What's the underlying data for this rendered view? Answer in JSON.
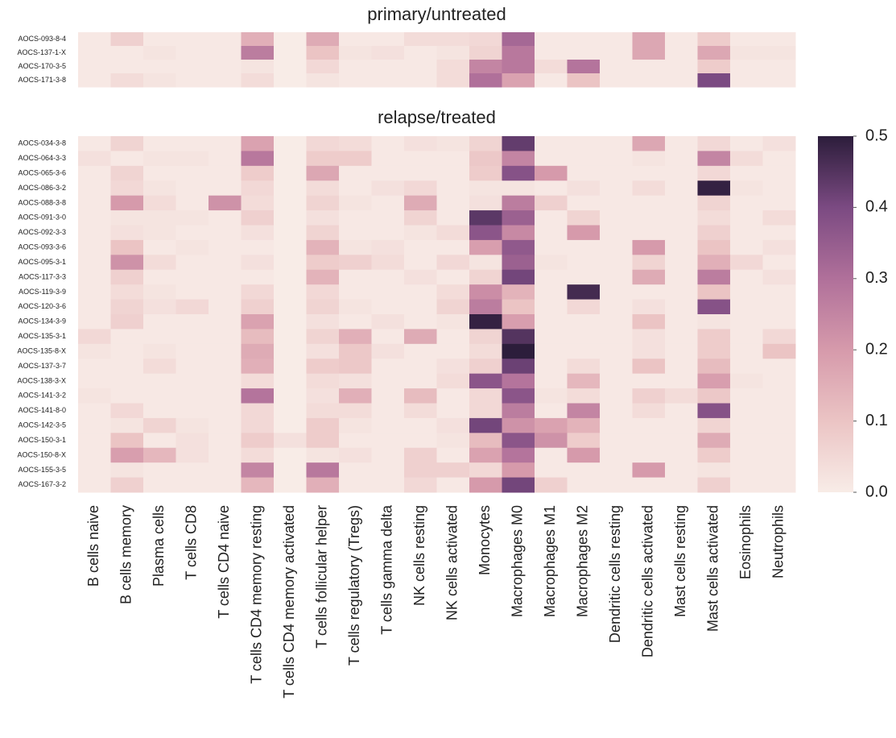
{
  "chart_data": {
    "type": "heatmap",
    "x_categories": [
      "B cells naive",
      "B cells memory",
      "Plasma cells",
      "T cells CD8",
      "T cells CD4 naive",
      "T cells CD4 memory resting",
      "T cells CD4 memory activated",
      "T cells follicular helper",
      "T cells regulatory (Tregs)",
      "T cells gamma delta",
      "NK cells resting",
      "NK cells activated",
      "Monocytes",
      "Macrophages M0",
      "Macrophages M1",
      "Macrophages M2",
      "Dendritic cells resting",
      "Dendritic cells activated",
      "Mast cells resting",
      "Mast cells activated",
      "Eosinophils",
      "Neutrophils"
    ],
    "clim": [
      0,
      0.5
    ],
    "colorbar_ticks": [
      {
        "value": 0,
        "label": "0.0"
      },
      0.1,
      0.2,
      0.3,
      0.4,
      0.5
    ],
    "colorscale": [
      "#f8ece7",
      "#ebc4c4",
      "#d69aab",
      "#b0709a",
      "#7b4a82",
      "#2c1d3b"
    ],
    "panels": [
      {
        "title": "primary/untreated",
        "rows": [
          "AOCS-093-8-4",
          "AOCS-137-1-X",
          "AOCS-170-3-5",
          "AOCS-171-3-8"
        ],
        "values": [
          [
            0.01,
            0.07,
            0.01,
            0.01,
            0.01,
            0.15,
            0.0,
            0.16,
            0.01,
            0.01,
            0.04,
            0.04,
            0.05,
            0.32,
            0.01,
            0.01,
            0.01,
            0.17,
            0.01,
            0.08,
            0.01,
            0.01
          ],
          [
            0.01,
            0.01,
            0.02,
            0.01,
            0.01,
            0.27,
            0.0,
            0.1,
            0.02,
            0.03,
            0.01,
            0.02,
            0.06,
            0.28,
            0.01,
            0.01,
            0.01,
            0.17,
            0.01,
            0.17,
            0.02,
            0.02
          ],
          [
            0.01,
            0.01,
            0.01,
            0.01,
            0.01,
            0.02,
            0.0,
            0.05,
            0.01,
            0.01,
            0.01,
            0.04,
            0.25,
            0.28,
            0.04,
            0.29,
            0.01,
            0.01,
            0.01,
            0.08,
            0.01,
            0.01
          ],
          [
            0.01,
            0.04,
            0.02,
            0.01,
            0.01,
            0.04,
            0.0,
            0.02,
            0.01,
            0.01,
            0.01,
            0.04,
            0.3,
            0.18,
            0.01,
            0.1,
            0.01,
            0.01,
            0.01,
            0.4,
            0.01,
            0.01
          ]
        ]
      },
      {
        "title": "relapse/treated",
        "rows": [
          "AOCS-034-3-8",
          "AOCS-064-3-3",
          "AOCS-065-3-6",
          "AOCS-086-3-2",
          "AOCS-088-3-8",
          "AOCS-091-3-0",
          "AOCS-092-3-3",
          "AOCS-093-3-6",
          "AOCS-095-3-1",
          "AOCS-117-3-3",
          "AOCS-119-3-9",
          "AOCS-120-3-6",
          "AOCS-134-3-9",
          "AOCS-135-3-1",
          "AOCS-135-8-X",
          "AOCS-137-3-7",
          "AOCS-138-3-X",
          "AOCS-141-3-2",
          "AOCS-141-8-0",
          "AOCS-142-3-5",
          "AOCS-150-3-1",
          "AOCS-150-8-X",
          "AOCS-155-3-5",
          "AOCS-167-3-2"
        ],
        "values": [
          [
            0.01,
            0.06,
            0.01,
            0.01,
            0.01,
            0.18,
            0,
            0.05,
            0.04,
            0.01,
            0.03,
            0.02,
            0.06,
            0.43,
            0.01,
            0.01,
            0.01,
            0.17,
            0.01,
            0.05,
            0.01,
            0.03
          ],
          [
            0.03,
            0.01,
            0.02,
            0.02,
            0.01,
            0.28,
            0,
            0.08,
            0.08,
            0.01,
            0.01,
            0.01,
            0.09,
            0.25,
            0.01,
            0.01,
            0.01,
            0.02,
            0.01,
            0.25,
            0.04,
            0.01
          ],
          [
            0.01,
            0.06,
            0.01,
            0.01,
            0.01,
            0.08,
            0,
            0.17,
            0.01,
            0.01,
            0.01,
            0.01,
            0.08,
            0.38,
            0.2,
            0.01,
            0.01,
            0.01,
            0.01,
            0.05,
            0.01,
            0.01
          ],
          [
            0.01,
            0.05,
            0.02,
            0.01,
            0.01,
            0.05,
            0,
            0.04,
            0.01,
            0.03,
            0.05,
            0.01,
            0.02,
            0.02,
            0.01,
            0.03,
            0.01,
            0.04,
            0.01,
            0.49,
            0.02,
            0.01
          ],
          [
            0.01,
            0.2,
            0.04,
            0.01,
            0.22,
            0.04,
            0,
            0.06,
            0.02,
            0.01,
            0.16,
            0.01,
            0.03,
            0.27,
            0.07,
            0.01,
            0.01,
            0.01,
            0.01,
            0.06,
            0.01,
            0.01
          ],
          [
            0.01,
            0.02,
            0.02,
            0.02,
            0.01,
            0.07,
            0,
            0.03,
            0.01,
            0.01,
            0.06,
            0.01,
            0.44,
            0.34,
            0.01,
            0.06,
            0.01,
            0.01,
            0.01,
            0.04,
            0.01,
            0.04
          ],
          [
            0.01,
            0.03,
            0.02,
            0.01,
            0.01,
            0.03,
            0,
            0.06,
            0.01,
            0.01,
            0.02,
            0.04,
            0.37,
            0.24,
            0.01,
            0.2,
            0.01,
            0.01,
            0.01,
            0.07,
            0.01,
            0.01
          ],
          [
            0.01,
            0.1,
            0.01,
            0.02,
            0.01,
            0.01,
            0,
            0.14,
            0.02,
            0.03,
            0.01,
            0.01,
            0.19,
            0.36,
            0.01,
            0.01,
            0.01,
            0.2,
            0.01,
            0.1,
            0.01,
            0.03
          ],
          [
            0.01,
            0.22,
            0.04,
            0.01,
            0.01,
            0.03,
            0,
            0.08,
            0.07,
            0.04,
            0.01,
            0.05,
            0.02,
            0.34,
            0.02,
            0.01,
            0.01,
            0.06,
            0.01,
            0.15,
            0.05,
            0.01
          ],
          [
            0.01,
            0.07,
            0.01,
            0.01,
            0.01,
            0.01,
            0,
            0.14,
            0.01,
            0.01,
            0.03,
            0.01,
            0.06,
            0.41,
            0.01,
            0.01,
            0.01,
            0.16,
            0.01,
            0.27,
            0.01,
            0.03
          ],
          [
            0.01,
            0.04,
            0.02,
            0.01,
            0.01,
            0.05,
            0,
            0.05,
            0.01,
            0.01,
            0.01,
            0.04,
            0.23,
            0.14,
            0.01,
            0.47,
            0.01,
            0.01,
            0.01,
            0.1,
            0.01,
            0.01
          ],
          [
            0.01,
            0.06,
            0.03,
            0.05,
            0.01,
            0.07,
            0,
            0.06,
            0.02,
            0.01,
            0.01,
            0.06,
            0.27,
            0.1,
            0.01,
            0.05,
            0.01,
            0.03,
            0.01,
            0.38,
            0.01,
            0.01
          ],
          [
            0.01,
            0.07,
            0.01,
            0.01,
            0.01,
            0.18,
            0,
            0.03,
            0.01,
            0.03,
            0.01,
            0.02,
            0.49,
            0.19,
            0.01,
            0.01,
            0.01,
            0.1,
            0.01,
            0.02,
            0.01,
            0.01
          ],
          [
            0.05,
            0.01,
            0.01,
            0.01,
            0.01,
            0.12,
            0,
            0.06,
            0.15,
            0.01,
            0.16,
            0.01,
            0.06,
            0.45,
            0.01,
            0.01,
            0.01,
            0.03,
            0.01,
            0.08,
            0.01,
            0.05
          ],
          [
            0.02,
            0.01,
            0.02,
            0.01,
            0.01,
            0.16,
            0,
            0.03,
            0.09,
            0.03,
            0.01,
            0.01,
            0.04,
            0.5,
            0.01,
            0.01,
            0.01,
            0.03,
            0.01,
            0.08,
            0.01,
            0.1
          ],
          [
            0.01,
            0.01,
            0.04,
            0.01,
            0.01,
            0.15,
            0,
            0.08,
            0.09,
            0.01,
            0.01,
            0.03,
            0.07,
            0.42,
            0.01,
            0.04,
            0.01,
            0.1,
            0.01,
            0.12,
            0.01,
            0.01
          ],
          [
            0.01,
            0.01,
            0.01,
            0.01,
            0.01,
            0.04,
            0,
            0.04,
            0.03,
            0.01,
            0.01,
            0.04,
            0.37,
            0.29,
            0.01,
            0.13,
            0.01,
            0.01,
            0.01,
            0.19,
            0.02,
            0.01
          ],
          [
            0.02,
            0.01,
            0.01,
            0.01,
            0.01,
            0.29,
            0,
            0.03,
            0.15,
            0.01,
            0.12,
            0.01,
            0.05,
            0.37,
            0.02,
            0.04,
            0.01,
            0.07,
            0.04,
            0.09,
            0.01,
            0.01
          ],
          [
            0.01,
            0.05,
            0.01,
            0.01,
            0.01,
            0.05,
            0,
            0.04,
            0.04,
            0.01,
            0.04,
            0.01,
            0.05,
            0.27,
            0.01,
            0.25,
            0.01,
            0.04,
            0.01,
            0.38,
            0.01,
            0.01
          ],
          [
            0.01,
            0.02,
            0.06,
            0.02,
            0.01,
            0.05,
            0,
            0.08,
            0.02,
            0.01,
            0.01,
            0.03,
            0.41,
            0.22,
            0.18,
            0.14,
            0.01,
            0.01,
            0.01,
            0.06,
            0.01,
            0.01
          ],
          [
            0.01,
            0.1,
            0.01,
            0.03,
            0.01,
            0.08,
            0.03,
            0.08,
            0.01,
            0.01,
            0.01,
            0.02,
            0.12,
            0.37,
            0.22,
            0.08,
            0.01,
            0.01,
            0.01,
            0.16,
            0.01,
            0.01
          ],
          [
            0.01,
            0.19,
            0.13,
            0.03,
            0.01,
            0.04,
            0,
            0.02,
            0.03,
            0.01,
            0.07,
            0.01,
            0.18,
            0.29,
            0.01,
            0.2,
            0.01,
            0.01,
            0.01,
            0.08,
            0.01,
            0.01
          ],
          [
            0.01,
            0.02,
            0.01,
            0.01,
            0.01,
            0.25,
            0,
            0.28,
            0.01,
            0.01,
            0.07,
            0.07,
            0.05,
            0.2,
            0.01,
            0.01,
            0.01,
            0.2,
            0.01,
            0.02,
            0.01,
            0.01
          ],
          [
            0.01,
            0.07,
            0.01,
            0.01,
            0.01,
            0.13,
            0,
            0.15,
            0.01,
            0.01,
            0.05,
            0.01,
            0.2,
            0.41,
            0.07,
            0.01,
            0.01,
            0.01,
            0.01,
            0.07,
            0.01,
            0.01
          ]
        ]
      }
    ]
  }
}
